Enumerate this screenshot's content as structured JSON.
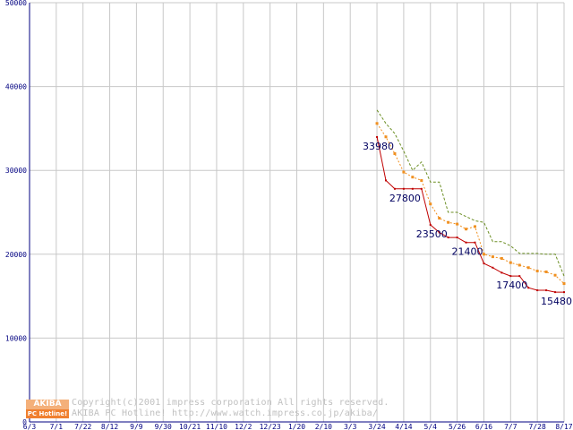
{
  "chart_data": {
    "type": "line",
    "title": "",
    "xlabel": "",
    "ylabel": "",
    "ylim": [
      0,
      50000
    ],
    "y_ticks": [
      0,
      10000,
      20000,
      30000,
      40000,
      50000
    ],
    "y_tick_labels": [
      "0",
      "10000",
      "20000",
      "30000",
      "40000",
      "50000"
    ],
    "x_tick_labels": [
      "6/3",
      "7/1",
      "7/22",
      "8/12",
      "9/9",
      "9/30",
      "10/21",
      "11/10",
      "12/2",
      "12/23",
      "1/20",
      "2/10",
      "3/3",
      "3/24",
      "4/14",
      "5/4",
      "5/26",
      "6/16",
      "7/7",
      "7/28",
      "8/17"
    ],
    "grid": true,
    "legend": "none",
    "x_step_per_tick": 3,
    "series": [
      {
        "color": "#c00000",
        "style": "solid",
        "x": [
          39,
          40,
          41,
          42,
          43,
          44,
          45,
          46,
          47,
          48,
          49,
          50,
          51,
          52,
          53,
          54,
          55,
          56,
          57,
          58,
          59,
          60
        ],
        "values": [
          33980,
          28800,
          27800,
          27800,
          27800,
          27800,
          23500,
          22600,
          22000,
          22000,
          21400,
          21400,
          18900,
          18400,
          17800,
          17400,
          17400,
          16000,
          15700,
          15700,
          15480,
          15480
        ]
      },
      {
        "color": "#f09020",
        "style": "dotted-markers",
        "x": [
          39,
          40,
          41,
          42,
          43,
          44,
          45,
          46,
          47,
          48,
          49,
          50,
          51,
          52,
          53,
          54,
          55,
          56,
          57,
          58,
          59,
          60
        ],
        "values": [
          35600,
          34000,
          32000,
          29800,
          29200,
          28800,
          26000,
          24300,
          23800,
          23600,
          23000,
          23300,
          20000,
          19700,
          19500,
          19000,
          18700,
          18400,
          18000,
          17900,
          17500,
          16500
        ]
      },
      {
        "color": "#6b8e23",
        "style": "dashed",
        "x": [
          39,
          40,
          41,
          42,
          43,
          44,
          45,
          46,
          47,
          48,
          49,
          50,
          51,
          52,
          53,
          54,
          55,
          56,
          57,
          58,
          59,
          60
        ],
        "values": [
          37200,
          35600,
          34400,
          32300,
          30000,
          31000,
          28600,
          28600,
          25000,
          25000,
          24500,
          24000,
          23800,
          21500,
          21500,
          21000,
          20100,
          20100,
          20100,
          20000,
          20000,
          17400
        ]
      }
    ],
    "data_labels": [
      {
        "x": 39,
        "value": 33980,
        "text": "33980"
      },
      {
        "x": 42,
        "value": 27800,
        "text": "27800"
      },
      {
        "x": 45,
        "value": 23500,
        "text": "23500"
      },
      {
        "x": 49,
        "value": 21400,
        "text": "21400"
      },
      {
        "x": 54,
        "value": 17400,
        "text": "17400"
      },
      {
        "x": 59,
        "value": 15480,
        "text": "15480"
      }
    ]
  },
  "watermark": {
    "logo_top": "AKIBA",
    "logo_bottom": "PC Hotline!",
    "line1": "Copyright(c)2001 impress corporation All rights reserved.",
    "line2": "AKIBA PC Hotline! http://www.watch.impress.co.jp/akiba/"
  }
}
